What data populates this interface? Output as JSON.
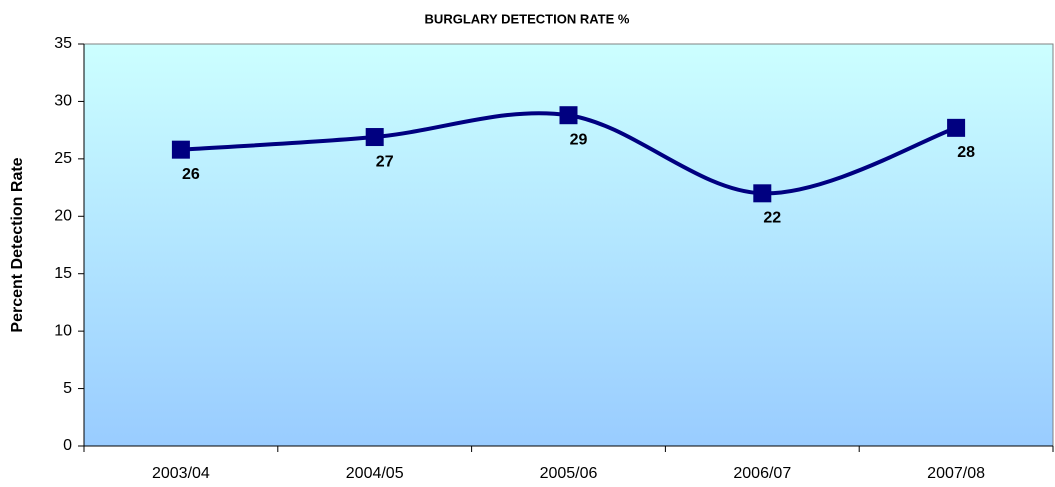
{
  "chart_data": {
    "type": "line",
    "title": "BURGLARY DETECTION RATE %",
    "y_label": "Percent Detection Rate",
    "categories": [
      "2003/04",
      "2004/05",
      "2005/06",
      "2006/07",
      "2007/08"
    ],
    "series": [
      {
        "name": "Burglary detection rate",
        "color": "#000080",
        "values": [
          25.8,
          26.9,
          28.8,
          22.0,
          27.7
        ],
        "value_labels": [
          "26",
          "27",
          "29",
          "22",
          "28"
        ]
      }
    ],
    "ylim": [
      0,
      35
    ],
    "yticks": [
      0,
      5,
      10,
      15,
      20,
      25,
      30,
      35
    ],
    "grid": false,
    "smooth": true
  }
}
